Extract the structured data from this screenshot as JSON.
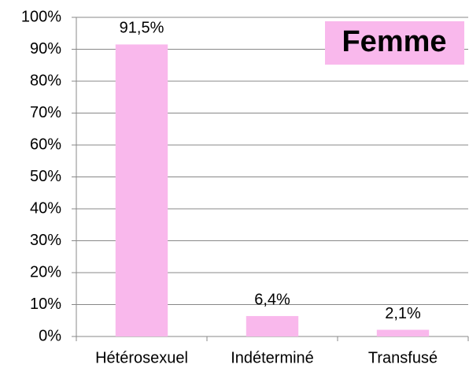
{
  "chart_data": {
    "type": "bar",
    "categories": [
      "Hétérosexuel",
      "Indéterminé",
      "Transfusé"
    ],
    "values": [
      91.5,
      6.4,
      2.1
    ],
    "value_labels": [
      "91,5%",
      "6,4%",
      "2,1%"
    ],
    "color": "#f9b8ec",
    "ylim": [
      0,
      100
    ],
    "yticks": [
      {
        "value": 0,
        "label": "0%"
      },
      {
        "value": 10,
        "label": "10%"
      },
      {
        "value": 20,
        "label": "20%"
      },
      {
        "value": 30,
        "label": "30%"
      },
      {
        "value": 40,
        "label": "40%"
      },
      {
        "value": 50,
        "label": "50%"
      },
      {
        "value": 60,
        "label": "60%"
      },
      {
        "value": 70,
        "label": "70%"
      },
      {
        "value": 80,
        "label": "80%"
      },
      {
        "value": 90,
        "label": "90%"
      },
      {
        "value": 100,
        "label": "100%"
      }
    ],
    "grid": true,
    "annotation": "Femme"
  }
}
